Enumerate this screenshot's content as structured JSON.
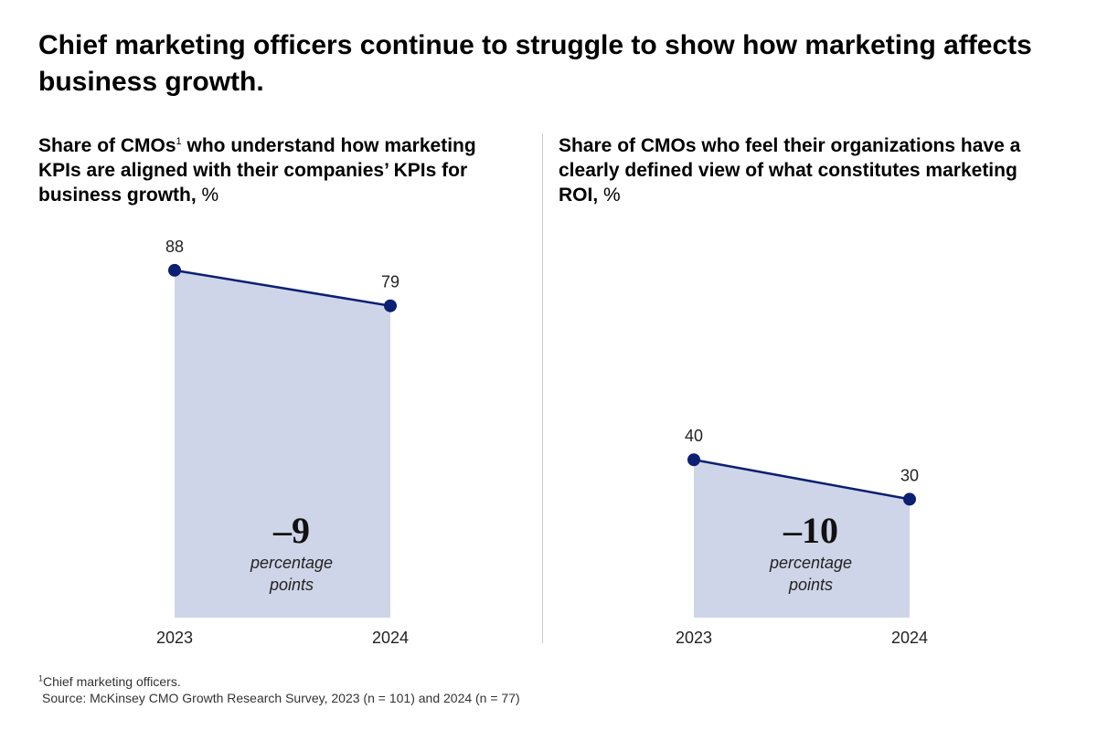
{
  "title": "Chief marketing officers continue to struggle to show how marketing affects business growth.",
  "colors": {
    "line": "#0b1f73",
    "fill": "#cfd5e8",
    "divider": "#c8c8c8"
  },
  "chart_data": [
    {
      "type": "area",
      "title_main": "Share of CMOs",
      "title_sup": "1",
      "title_rest": " who understand how marketing KPIs are aligned with their companies’ KPIs for business growth,",
      "unit": " %",
      "x": [
        "2023",
        "2024"
      ],
      "values": [
        88,
        79
      ],
      "value_labels": [
        "88",
        "79"
      ],
      "ylim": [
        0,
        100
      ],
      "delta_label": "–9",
      "delta_caption_1": "percentage",
      "delta_caption_2": "points"
    },
    {
      "type": "area",
      "title_main": "Share of CMOs who feel their organizations have a clearly defined view of what constitutes marketing ROI,",
      "title_sup": "",
      "title_rest": "",
      "unit": " %",
      "x": [
        "2023",
        "2024"
      ],
      "values": [
        40,
        30
      ],
      "value_labels": [
        "40",
        "30"
      ],
      "ylim": [
        0,
        100
      ],
      "delta_label": "–10",
      "delta_caption_1": "percentage",
      "delta_caption_2": "points"
    }
  ],
  "footnote": {
    "sup": "1",
    "text": "Chief marketing officers.",
    "source": "Source: McKinsey CMO Growth Research Survey, 2023 (n = 101) and 2024 (n = 77)"
  }
}
